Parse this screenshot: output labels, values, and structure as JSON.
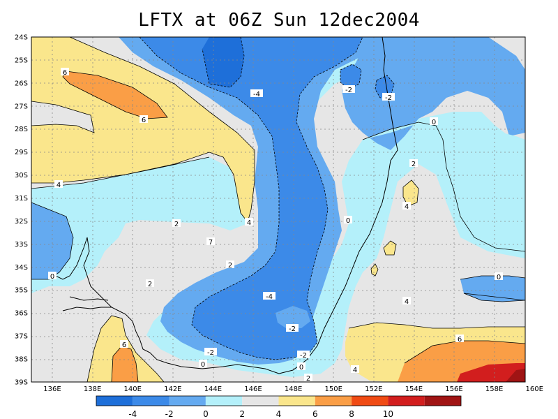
{
  "title": "LFTX at 06Z Sun 12dec2004",
  "map": {
    "lat_labels": [
      "24S",
      "25S",
      "26S",
      "27S",
      "28S",
      "29S",
      "30S",
      "31S",
      "32S",
      "33S",
      "34S",
      "35S",
      "36S",
      "37S",
      "38S",
      "39S"
    ],
    "lon_labels": [
      "136E",
      "138E",
      "140E",
      "142E",
      "144E",
      "146E",
      "148E",
      "150E",
      "152E",
      "154E",
      "156E",
      "158E",
      "160E"
    ],
    "contour_labels": [
      "6",
      "6",
      "4",
      "2",
      "-4",
      "-2",
      "-2",
      "0",
      "2",
      "4",
      "0",
      "4",
      "7",
      "2",
      "0",
      "2",
      "-4",
      "-2",
      "-2",
      "-2",
      "0",
      "0",
      "2",
      "4",
      "6",
      "0",
      "4",
      "6"
    ]
  },
  "colorbar": {
    "colors": [
      "#1e6fd9",
      "#3c8ae8",
      "#64aaf0",
      "#b4f0fa",
      "#e6e6e6",
      "#fae68c",
      "#fa9e46",
      "#f04b14",
      "#d21e1e",
      "#a01414"
    ],
    "labels": [
      "-4",
      "-2",
      "0",
      "2",
      "4",
      "6",
      "8",
      "10"
    ]
  }
}
